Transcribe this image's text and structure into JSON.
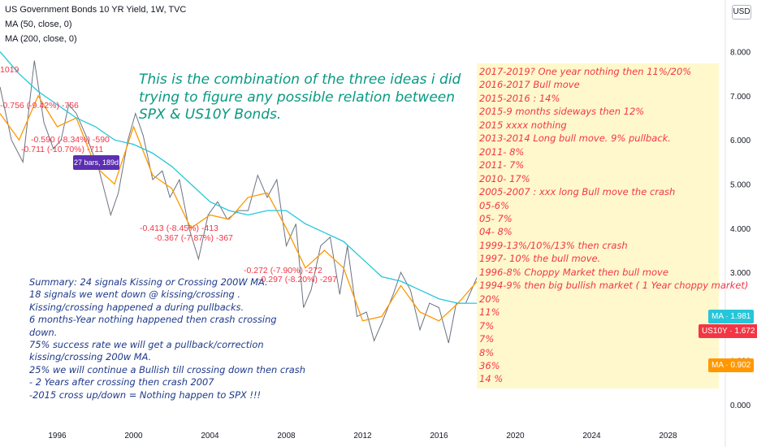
{
  "header": {
    "title": "US Government Bonds 10 YR Yield, 1W, TVC",
    "ma50": "MA (50, close, 0)",
    "ma200": "MA (200, close, 0)"
  },
  "currency_button": "USD",
  "price_badges": {
    "ma200": {
      "label": "MA",
      "value": "1.981",
      "color": "#26c6da"
    },
    "last": {
      "label": "US10Y",
      "value": "1.672",
      "color": "#f23645"
    },
    "ma50": {
      "label": "MA",
      "value": "0.902",
      "color": "#ff9800"
    }
  },
  "bars_tag": "27 bars, 189d",
  "chart_labels": [
    {
      "text": "1019"
    },
    {
      "text": "-0.756 (-9.42%) -756"
    },
    {
      "text": "-0.590 (-8.34%) -590"
    },
    {
      "text": "-0.711 (-10.70%) -711"
    },
    {
      "text": "-0.413 (-8.45%) -413"
    },
    {
      "text": "-0.367 (-7.87%) -367"
    },
    {
      "text": "-0.272 (-7.90%) -272"
    },
    {
      "text": "-0.297 (-8.20%) -297"
    }
  ],
  "combo_text": [
    "This is the combination of the  three ideas i did",
    "trying to figure any possible relation between",
    "SPX & US10Y Bonds."
  ],
  "summary_text": [
    "Summary: 24 signals Kissing or Crossing 200W MA.",
    "18 signals we went down @ kissing/crossing .",
    "Kissing/crossing  happened a during pullbacks.",
    "6 months-Year nothing happened then crash crossing",
    "  down.",
    "75% success rate we will get a pullback/correction",
    "kissing/crossing 200w MA.",
    "25% we will continue a Bullish till crossing down then crash",
    "- 2 Years after crossing then crash 2007",
    "-2015 cross up/down = Nothing happen to SPX !!!"
  ],
  "notes": [
    "2017-2019? One year nothing then   11%/20%",
    "2016-2017 Bull move",
    "2015-2016 : 14%",
    "2015-9 months sideways then 12%",
    "2015 xxxx nothing",
    "2013-2014 Long bull move. 9% pullback.",
    "2011- 8%",
    "2011- 7%",
    "2010- 17%",
    "2005-2007 : xxx long Bull move the crash",
    "05-6%",
    "05- 7%",
    "04- 8%",
    "1999-13%/10%/13% then crash",
    "1997- 10% the bull move.",
    "1996-8% Choppy Market then bull move",
    "1994-9% then big bullish market ( 1 Year choppy market)",
    "20%",
    "11%",
    "7%",
    "7%",
    "8%",
    "36%",
    "14 %"
  ],
  "colors": {
    "price": "#6b7280",
    "ma50": "#ff9800",
    "ma200": "#26c6da",
    "text_red": "#f23645",
    "text_green": "#089981",
    "text_navy": "#1e3a8a",
    "note_bg": "#fff8cc"
  },
  "chart_data": {
    "type": "line",
    "title": "US Government Bonds 10 YR Yield, 1W, TVC",
    "xlim": [
      1993.0,
      2031.0
    ],
    "ylim": [
      -0.3,
      8.6
    ],
    "x_ticks": [
      "1996",
      "2000",
      "2004",
      "2008",
      "2012",
      "2016",
      "2020",
      "2024",
      "2028"
    ],
    "y_ticks": [
      "0.000",
      "1.000",
      "2.000",
      "3.000",
      "4.000",
      "5.000",
      "6.000",
      "7.000",
      "8.000"
    ],
    "series": [
      {
        "name": "US10Y",
        "color": "#6b7280",
        "x": [
          1993.0,
          1993.6,
          1994.2,
          1994.8,
          1995.3,
          1995.8,
          1996.2,
          1996.6,
          1997.0,
          1997.6,
          1998.2,
          1998.8,
          1999.2,
          1999.7,
          2000.1,
          2000.5,
          2001.0,
          2001.5,
          2001.9,
          2002.4,
          2002.9,
          2003.4,
          2003.9,
          2004.4,
          2004.9,
          2005.5,
          2006.0,
          2006.5,
          2007.0,
          2007.5,
          2008.0,
          2008.5,
          2008.9,
          2009.3,
          2009.8,
          2010.3,
          2010.8,
          2011.2,
          2011.7,
          2012.2,
          2012.6,
          2013.0,
          2013.6,
          2014.0,
          2014.5,
          2015.0,
          2015.5,
          2016.0,
          2016.5,
          2016.9,
          2017.4,
          2018.0,
          2018.8,
          2019.3,
          2019.7,
          2020.0,
          2020.2,
          2020.6,
          2020.9,
          2021.2
        ],
        "y": [
          7.2,
          6.0,
          5.5,
          7.8,
          6.4,
          5.8,
          6.0,
          6.8,
          6.6,
          6.0,
          5.3,
          4.3,
          4.8,
          6.0,
          6.6,
          6.1,
          5.1,
          5.3,
          4.7,
          5.1,
          4.0,
          3.3,
          4.3,
          4.6,
          4.2,
          4.4,
          4.4,
          5.2,
          4.7,
          5.1,
          3.6,
          4.1,
          2.2,
          2.6,
          3.6,
          3.8,
          2.5,
          3.6,
          2.0,
          2.1,
          1.45,
          1.85,
          2.5,
          3.0,
          2.6,
          1.7,
          2.3,
          2.2,
          1.4,
          2.3,
          2.3,
          2.9,
          3.2,
          2.5,
          1.5,
          1.8,
          0.55,
          0.6,
          0.9,
          1.67
        ]
      },
      {
        "name": "MA (50, close, 0)",
        "color": "#ff9800",
        "x": [
          1993.0,
          1994.0,
          1995.0,
          1996.0,
          1997.0,
          1998.0,
          1999.0,
          2000.0,
          2001.0,
          2002.0,
          2003.0,
          2004.0,
          2005.0,
          2006.0,
          2007.0,
          2008.0,
          2009.0,
          2010.0,
          2011.0,
          2012.0,
          2013.0,
          2014.0,
          2015.0,
          2016.0,
          2017.0,
          2018.0,
          2019.0,
          2019.8,
          2020.3,
          2020.7,
          2021.2
        ],
        "y": [
          6.6,
          6.0,
          7.0,
          6.3,
          6.5,
          5.4,
          5.0,
          6.3,
          5.2,
          4.9,
          4.0,
          4.3,
          4.2,
          4.7,
          4.8,
          4.0,
          3.1,
          3.5,
          3.1,
          1.9,
          2.0,
          2.7,
          2.1,
          1.9,
          2.3,
          2.8,
          2.6,
          1.9,
          1.2,
          0.75,
          0.9
        ]
      },
      {
        "name": "MA (200, close, 0)",
        "color": "#26c6da",
        "x": [
          1993.0,
          1994.0,
          1995.0,
          1996.0,
          1997.0,
          1998.0,
          1999.0,
          2000.0,
          2001.0,
          2002.0,
          2003.0,
          2004.0,
          2005.0,
          2006.0,
          2007.0,
          2008.0,
          2009.0,
          2010.0,
          2011.0,
          2012.0,
          2013.0,
          2014.0,
          2015.0,
          2016.0,
          2017.0,
          2018.0,
          2019.0,
          2020.0,
          2021.2
        ],
        "y": [
          8.0,
          7.5,
          7.1,
          6.8,
          6.5,
          6.3,
          6.0,
          5.9,
          5.7,
          5.4,
          5.0,
          4.6,
          4.4,
          4.3,
          4.4,
          4.4,
          4.1,
          3.9,
          3.7,
          3.3,
          2.9,
          2.8,
          2.6,
          2.4,
          2.3,
          2.3,
          2.4,
          2.3,
          1.98
        ]
      }
    ],
    "grid": false,
    "legend": "top-left"
  }
}
